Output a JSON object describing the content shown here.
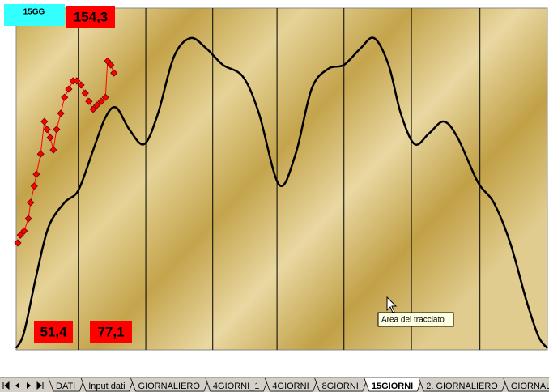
{
  "chart_data": {
    "type": "line",
    "xlim": [
      0,
      100
    ],
    "ylim": [
      0,
      100
    ],
    "grid": true,
    "grid_x": [
      11.7,
      24.4,
      37,
      49.1,
      61.7,
      74.4,
      87.3
    ],
    "series": [
      {
        "color": "#000000",
        "marker": "none",
        "x": [
          0,
          1.5,
          3.8,
          6.1,
          9.1,
          11.7,
          14.5,
          16.8,
          18.8,
          21.3,
          24.1,
          26.7,
          29.7,
          32.8,
          35.8,
          38.9,
          42.7,
          45.7,
          49.5,
          52.6,
          55.6,
          58.7,
          61.7,
          64.8,
          67.4,
          70.1,
          72.4,
          75,
          77.7,
          80.5,
          83.1,
          86.9,
          89.9,
          93,
          96,
          98.3,
          100
        ],
        "values": [
          0.5,
          5.2,
          21.8,
          36,
          43.1,
          46.7,
          58.5,
          68,
          70.9,
          64.5,
          60.2,
          69.2,
          85.8,
          91.2,
          88.2,
          83.4,
          79.9,
          69.2,
          48.3,
          57.3,
          76.3,
          82.2,
          83.4,
          88.2,
          91.2,
          83.4,
          69.2,
          60.2,
          63.3,
          66.8,
          62.1,
          49.1,
          43.1,
          31.3,
          14.7,
          4,
          0.5
        ]
      },
      {
        "color": "#ff0000",
        "marker": "diamond",
        "x": [
          0.3,
          0.8,
          1.5,
          2.3,
          2.7,
          3.4,
          3.8,
          4.6,
          5.3,
          5.8,
          6.4,
          7,
          7.6,
          8.4,
          9.1,
          9.9,
          10.7,
          11.4,
          12.2,
          13,
          13.7,
          14.5,
          15.2,
          16,
          16.8,
          17.2,
          17.8,
          18.4
        ],
        "values": [
          31.3,
          33.6,
          34.8,
          38.4,
          43.1,
          47.9,
          51.4,
          57.3,
          66.8,
          64.5,
          62.1,
          58.5,
          64.5,
          69.2,
          73.9,
          76.3,
          78.7,
          78.7,
          77.5,
          75.1,
          72.7,
          70.4,
          71.6,
          72.7,
          73.9,
          84.5,
          83.4,
          81
        ]
      }
    ]
  },
  "overlay": {
    "badge": "15GG",
    "max": "154,3",
    "low_1": "51,4",
    "low_2": "77,1"
  },
  "tooltip": "Area del tracciato",
  "sheet_tabs": [
    "DATI",
    "Input dati",
    "GIORNALIERO",
    "4GIORNI_1",
    "4GIORNI",
    "8GIORNI",
    "15GIORNI",
    "2. GIORNALIERO",
    "GIORNALIERO"
  ],
  "active_tab": 6
}
